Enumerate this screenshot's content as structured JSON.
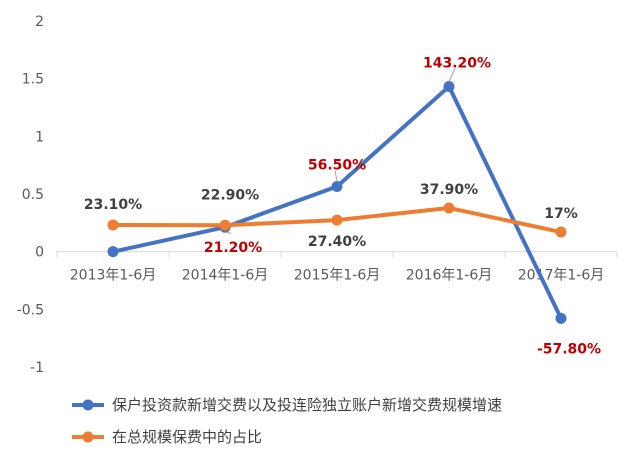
{
  "chart_data": {
    "type": "line",
    "categories": [
      "2013年1-6月",
      "2014年1-6月",
      "2015年1-6月",
      "2016年1-6月",
      "2017年1-6月"
    ],
    "ylim": [
      -1,
      2
    ],
    "yticks": [
      "2",
      "1.5",
      "1",
      "0.5",
      "0",
      "-0.5",
      "-1"
    ],
    "grid": false,
    "legend_position": "bottom-left",
    "series": [
      {
        "name": "保户投资款新增交费以及投连险独立账户新增交费规模增速",
        "color": "#4472C4",
        "values": [
          0,
          0.212,
          0.565,
          1.432,
          -0.578
        ],
        "labels": [
          "",
          "21.20%",
          "56.50%",
          "143.20%",
          "-57.80%"
        ],
        "label_color": "#C00000"
      },
      {
        "name": "在总规模保费中的占比",
        "color": "#ED7D31",
        "values": [
          0.231,
          0.229,
          0.274,
          0.379,
          0.17
        ],
        "labels": [
          "23.10%",
          "22.90%",
          "27.40%",
          "37.90%",
          "17%"
        ],
        "label_color": "#404040"
      }
    ]
  }
}
